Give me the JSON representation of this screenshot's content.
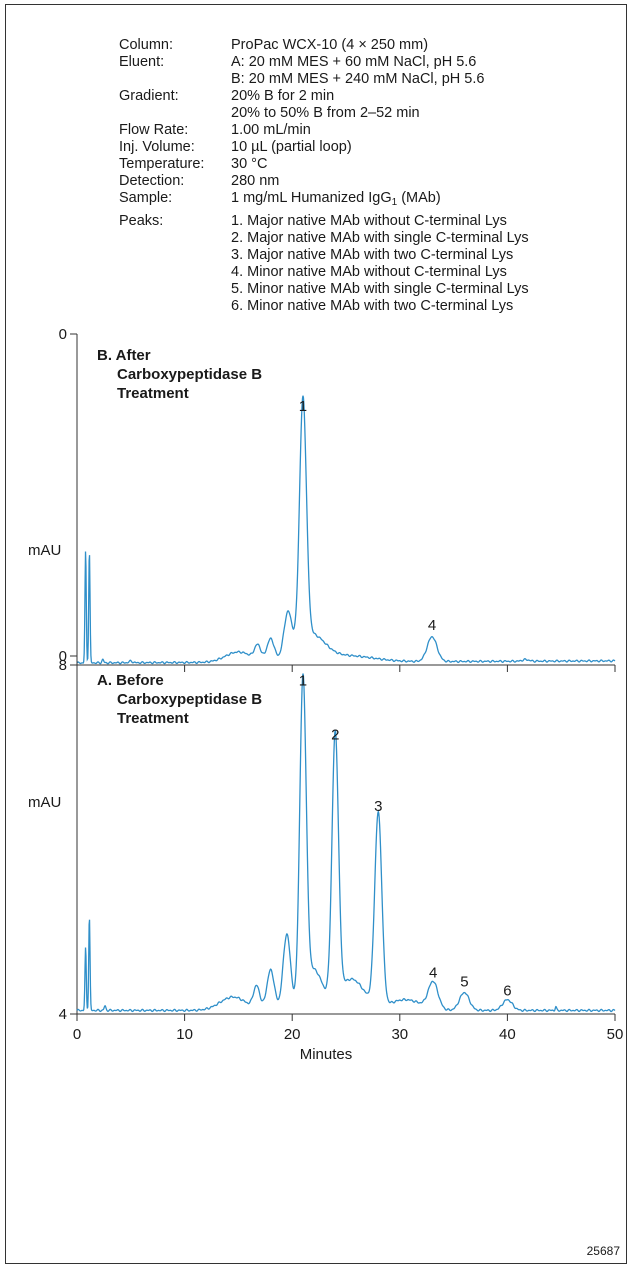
{
  "conditions": [
    {
      "label": "Column:",
      "value": "ProPac WCX-10 (4 × 250 mm)"
    },
    {
      "label": "Eluent:",
      "value": "A: 20 mM MES + 60 mM NaCl, pH 5.6"
    },
    {
      "label": "",
      "value": "B: 20 mM MES + 240 mM NaCl, pH 5.6"
    },
    {
      "label": "Gradient:",
      "value": "20% B for 2 min"
    },
    {
      "label": "",
      "value": "20% to 50% B from 2–52 min"
    },
    {
      "label": "Flow Rate:",
      "value": "1.00 mL/min"
    },
    {
      "label": "Inj. Volume:",
      "value": "10 µL (partial loop)"
    },
    {
      "label": "Temperature:",
      "value": "30 °C"
    },
    {
      "label": "Detection:",
      "value": "280 nm"
    },
    {
      "label": "Sample:",
      "value": "1 mg/mL Humanized IgG",
      "sub": "1",
      "suffix": " (MAb)"
    },
    {
      "label": "Peaks:",
      "value": "1. Major native MAb without C-terminal Lys"
    },
    {
      "label": "",
      "value": "2. Major native MAb with single C-terminal Lys"
    },
    {
      "label": "",
      "value": "3. Major native MAb with two C-terminal Lys"
    },
    {
      "label": "",
      "value": "4. Minor native MAb without C-terminal Lys"
    },
    {
      "label": "",
      "value": "5. Minor native MAb with single C-terminal Lys"
    },
    {
      "label": "",
      "value": "6. Minor native MAb with two C-terminal Lys"
    }
  ],
  "figure_id": "25687",
  "colors": {
    "trace": "#2f8fc9",
    "axis": "#333333"
  },
  "chart_data": [
    {
      "type": "line",
      "panel": "B",
      "title": [
        "B. After",
        "Carboxypeptidase B",
        "Treatment"
      ],
      "ylabel": "mAU",
      "xlim": [
        0,
        50
      ],
      "ylim": [
        0,
        8
      ],
      "yticks": [
        "0",
        "8"
      ],
      "xticks": [
        0,
        10,
        20,
        30,
        40,
        50
      ],
      "baseline_start": 0.05,
      "baseline_end": 0.1,
      "peaks": [
        {
          "x": 0.8,
          "y": 2.7,
          "w": 0.06
        },
        {
          "x": 1.15,
          "y": 2.7,
          "w": 0.06
        },
        {
          "x": 2.4,
          "y": 0.08,
          "w": 0.08
        },
        {
          "x": 5.0,
          "y": 0.04,
          "w": 0.15
        },
        {
          "x": 15.0,
          "y": 0.25,
          "w": 1.2
        },
        {
          "x": 16.8,
          "y": 0.35,
          "w": 0.3
        },
        {
          "x": 18.0,
          "y": 0.55,
          "w": 0.35
        },
        {
          "x": 19.6,
          "y": 1.1,
          "w": 0.38
        },
        {
          "x": 21.0,
          "y": 5.9,
          "w": 0.32
        },
        {
          "x": 21.8,
          "y": 0.6,
          "w": 1.2
        },
        {
          "x": 25.0,
          "y": 0.15,
          "w": 2.5
        },
        {
          "x": 33.0,
          "y": 0.6,
          "w": 0.45
        },
        {
          "x": 41.7,
          "y": 0.04,
          "w": 0.3
        }
      ],
      "peak_labels": [
        {
          "label": "1",
          "x": 21.0,
          "y": 5.95
        },
        {
          "label": "4",
          "x": 33.0,
          "y": 0.65
        }
      ]
    },
    {
      "type": "line",
      "panel": "A",
      "title": [
        "A. Before",
        "Carboxypeptidase B",
        "Treatment"
      ],
      "ylabel": "mAU",
      "xlabel": "Minutes",
      "xlim": [
        0,
        50
      ],
      "ylim": [
        0,
        4
      ],
      "yticks": [
        "0",
        "4"
      ],
      "xticks": [
        0,
        10,
        20,
        30,
        40,
        50
      ],
      "xtick_labels": [
        "0",
        "10",
        "20",
        "30",
        "40",
        "50"
      ],
      "baseline_start": 0.04,
      "baseline_end": 0.04,
      "peaks": [
        {
          "x": 0.8,
          "y": 0.7,
          "w": 0.06
        },
        {
          "x": 1.15,
          "y": 1.05,
          "w": 0.06
        },
        {
          "x": 2.6,
          "y": 0.05,
          "w": 0.08
        },
        {
          "x": 14.5,
          "y": 0.15,
          "w": 1.2
        },
        {
          "x": 16.7,
          "y": 0.25,
          "w": 0.3
        },
        {
          "x": 18.0,
          "y": 0.45,
          "w": 0.35
        },
        {
          "x": 19.5,
          "y": 0.85,
          "w": 0.35
        },
        {
          "x": 21.0,
          "y": 3.55,
          "w": 0.3
        },
        {
          "x": 22.0,
          "y": 0.45,
          "w": 0.8
        },
        {
          "x": 24.0,
          "y": 2.95,
          "w": 0.3
        },
        {
          "x": 25.5,
          "y": 0.35,
          "w": 1.2
        },
        {
          "x": 28.0,
          "y": 2.15,
          "w": 0.33
        },
        {
          "x": 30.5,
          "y": 0.12,
          "w": 1.5
        },
        {
          "x": 33.1,
          "y": 0.3,
          "w": 0.45
        },
        {
          "x": 36.0,
          "y": 0.2,
          "w": 0.45
        },
        {
          "x": 40.0,
          "y": 0.12,
          "w": 0.45
        },
        {
          "x": 44.5,
          "y": 0.04,
          "w": 0.06
        }
      ],
      "peak_labels": [
        {
          "label": "1",
          "x": 21.0,
          "y": 3.58
        },
        {
          "label": "2",
          "x": 24.0,
          "y": 2.98
        },
        {
          "label": "3",
          "x": 28.0,
          "y": 2.18
        },
        {
          "label": "4",
          "x": 33.1,
          "y": 0.32
        },
        {
          "label": "5",
          "x": 36.0,
          "y": 0.22
        },
        {
          "label": "6",
          "x": 40.0,
          "y": 0.12
        }
      ]
    }
  ]
}
